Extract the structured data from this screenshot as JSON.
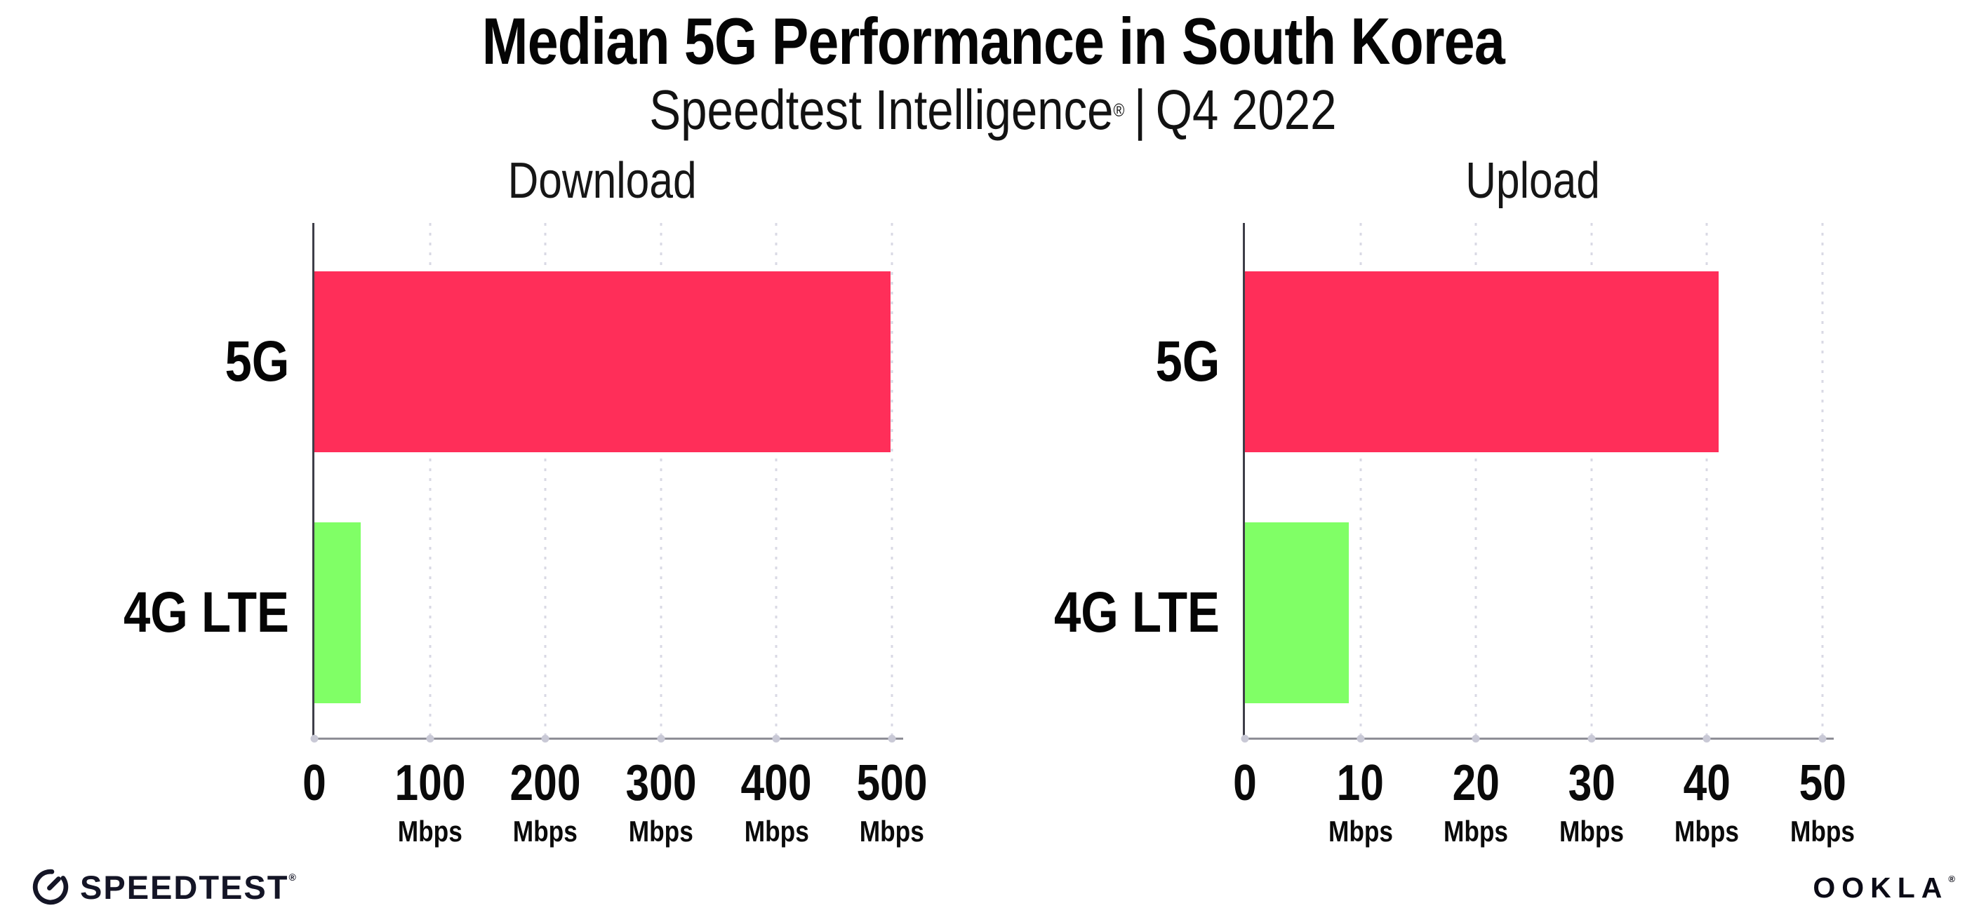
{
  "header": {
    "title": "Median 5G Performance in South Korea",
    "subtitle": {
      "brand": "Speedtest Intelligence",
      "registered_mark": "®",
      "separator": "|",
      "period": "Q4 2022"
    }
  },
  "chart_data": [
    {
      "type": "bar",
      "orientation": "horizontal",
      "title": "Download",
      "categories": [
        "5G",
        "4G LTE"
      ],
      "values": [
        499,
        40
      ],
      "unit": "Mbps",
      "xlim": [
        0,
        500
      ],
      "xticks": [
        0,
        100,
        200,
        300,
        400,
        500
      ],
      "xtick_unit": "Mbps",
      "bar_colors": [
        "#ff2e59",
        "#80ff66"
      ],
      "grid": "vertical-dotted",
      "legend": "none"
    },
    {
      "type": "bar",
      "orientation": "horizontal",
      "title": "Upload",
      "categories": [
        "5G",
        "4G LTE"
      ],
      "values": [
        41,
        9
      ],
      "unit": "Mbps",
      "xlim": [
        0,
        50
      ],
      "xticks": [
        0,
        10,
        20,
        30,
        40,
        50
      ],
      "xtick_unit": "Mbps",
      "bar_colors": [
        "#ff2e59",
        "#80ff66"
      ],
      "grid": "vertical-dotted",
      "legend": "none"
    }
  ],
  "footer": {
    "speedtest_logo_text": "SPEEDTEST",
    "speedtest_registered_mark": "®",
    "ookla_logo_text": "OOKLA",
    "ookla_registered_mark": "®"
  },
  "colors": {
    "bar_5g": "#ff2e59",
    "bar_4g_lte": "#80ff66",
    "background": "#ffffff",
    "text": "#0c0c0c",
    "gridline": "#d9d9e4",
    "x_axis_line": "#8e8e96",
    "y_axis_line": "#3e3e48",
    "logo": "#141526"
  }
}
